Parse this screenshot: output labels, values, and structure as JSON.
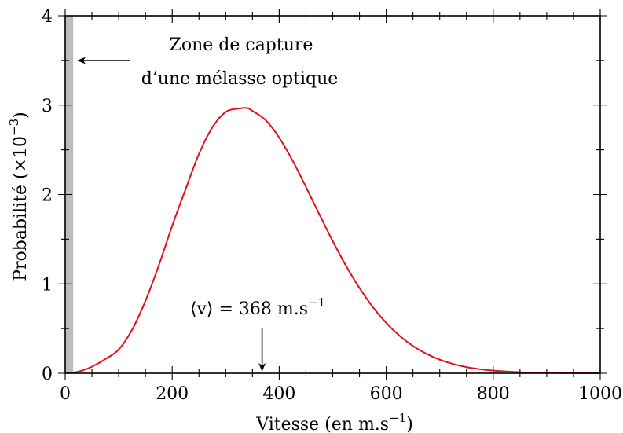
{
  "chart_data": {
    "type": "line",
    "title": "",
    "xlabel": "Vitesse (en m.s",
    "xlabel_sup": "−1",
    "xlabel_suffix": ")",
    "ylabel": "Probabilité (×10",
    "ylabel_sup": "−3",
    "ylabel_suffix": ")",
    "xlim": [
      0,
      1000
    ],
    "ylim": [
      0,
      4
    ],
    "xticks": [
      0,
      200,
      400,
      600,
      800,
      1000
    ],
    "xtick_labels": [
      "0",
      "200",
      "400",
      "600",
      "800",
      "1000"
    ],
    "yticks": [
      0,
      1,
      2,
      3,
      4
    ],
    "ytick_labels": [
      "0",
      "1",
      "2",
      "3",
      "4"
    ],
    "x_minor_step": 50,
    "y_minor_step": 0.5,
    "grid": false,
    "series": [
      {
        "color": "#e3101b",
        "distribution": "Maxwell-Boltzmann",
        "mean": 368,
        "x": [
          0,
          25,
          50,
          75,
          100,
          125,
          150,
          175,
          200,
          225,
          250,
          275,
          300,
          325,
          340,
          350,
          375,
          400,
          425,
          450,
          475,
          500,
          525,
          550,
          575,
          600,
          625,
          650,
          675,
          700,
          725,
          750,
          775,
          800,
          850,
          900,
          950,
          1000
        ],
        "y": [
          0,
          0.0189,
          0.0737,
          0.1585,
          0.2653,
          0.4868,
          0.8093,
          1.2072,
          1.65,
          2.058,
          2.454,
          2.75,
          2.923,
          2.962,
          2.968,
          2.935,
          2.83,
          2.636,
          2.379,
          2.084,
          1.778,
          1.479,
          1.201,
          0.954,
          0.741,
          0.563,
          0.419,
          0.305,
          0.218,
          0.152,
          0.104,
          0.0695,
          0.0456,
          0.0294,
          0.0114,
          0.0042,
          0.0015,
          0.0005
        ]
      }
    ],
    "annotations": [
      {
        "text": "Zone de capture",
        "text2": "d’une mélasse optique",
        "arrow_direction": "left",
        "region_x": [
          0,
          15
        ],
        "region_color": "#bdbdbd"
      },
      {
        "text": "⟨v⟩ = 368 m.s",
        "text_sup": "−1",
        "arrow_direction": "down",
        "arrow_x": 368
      }
    ]
  }
}
